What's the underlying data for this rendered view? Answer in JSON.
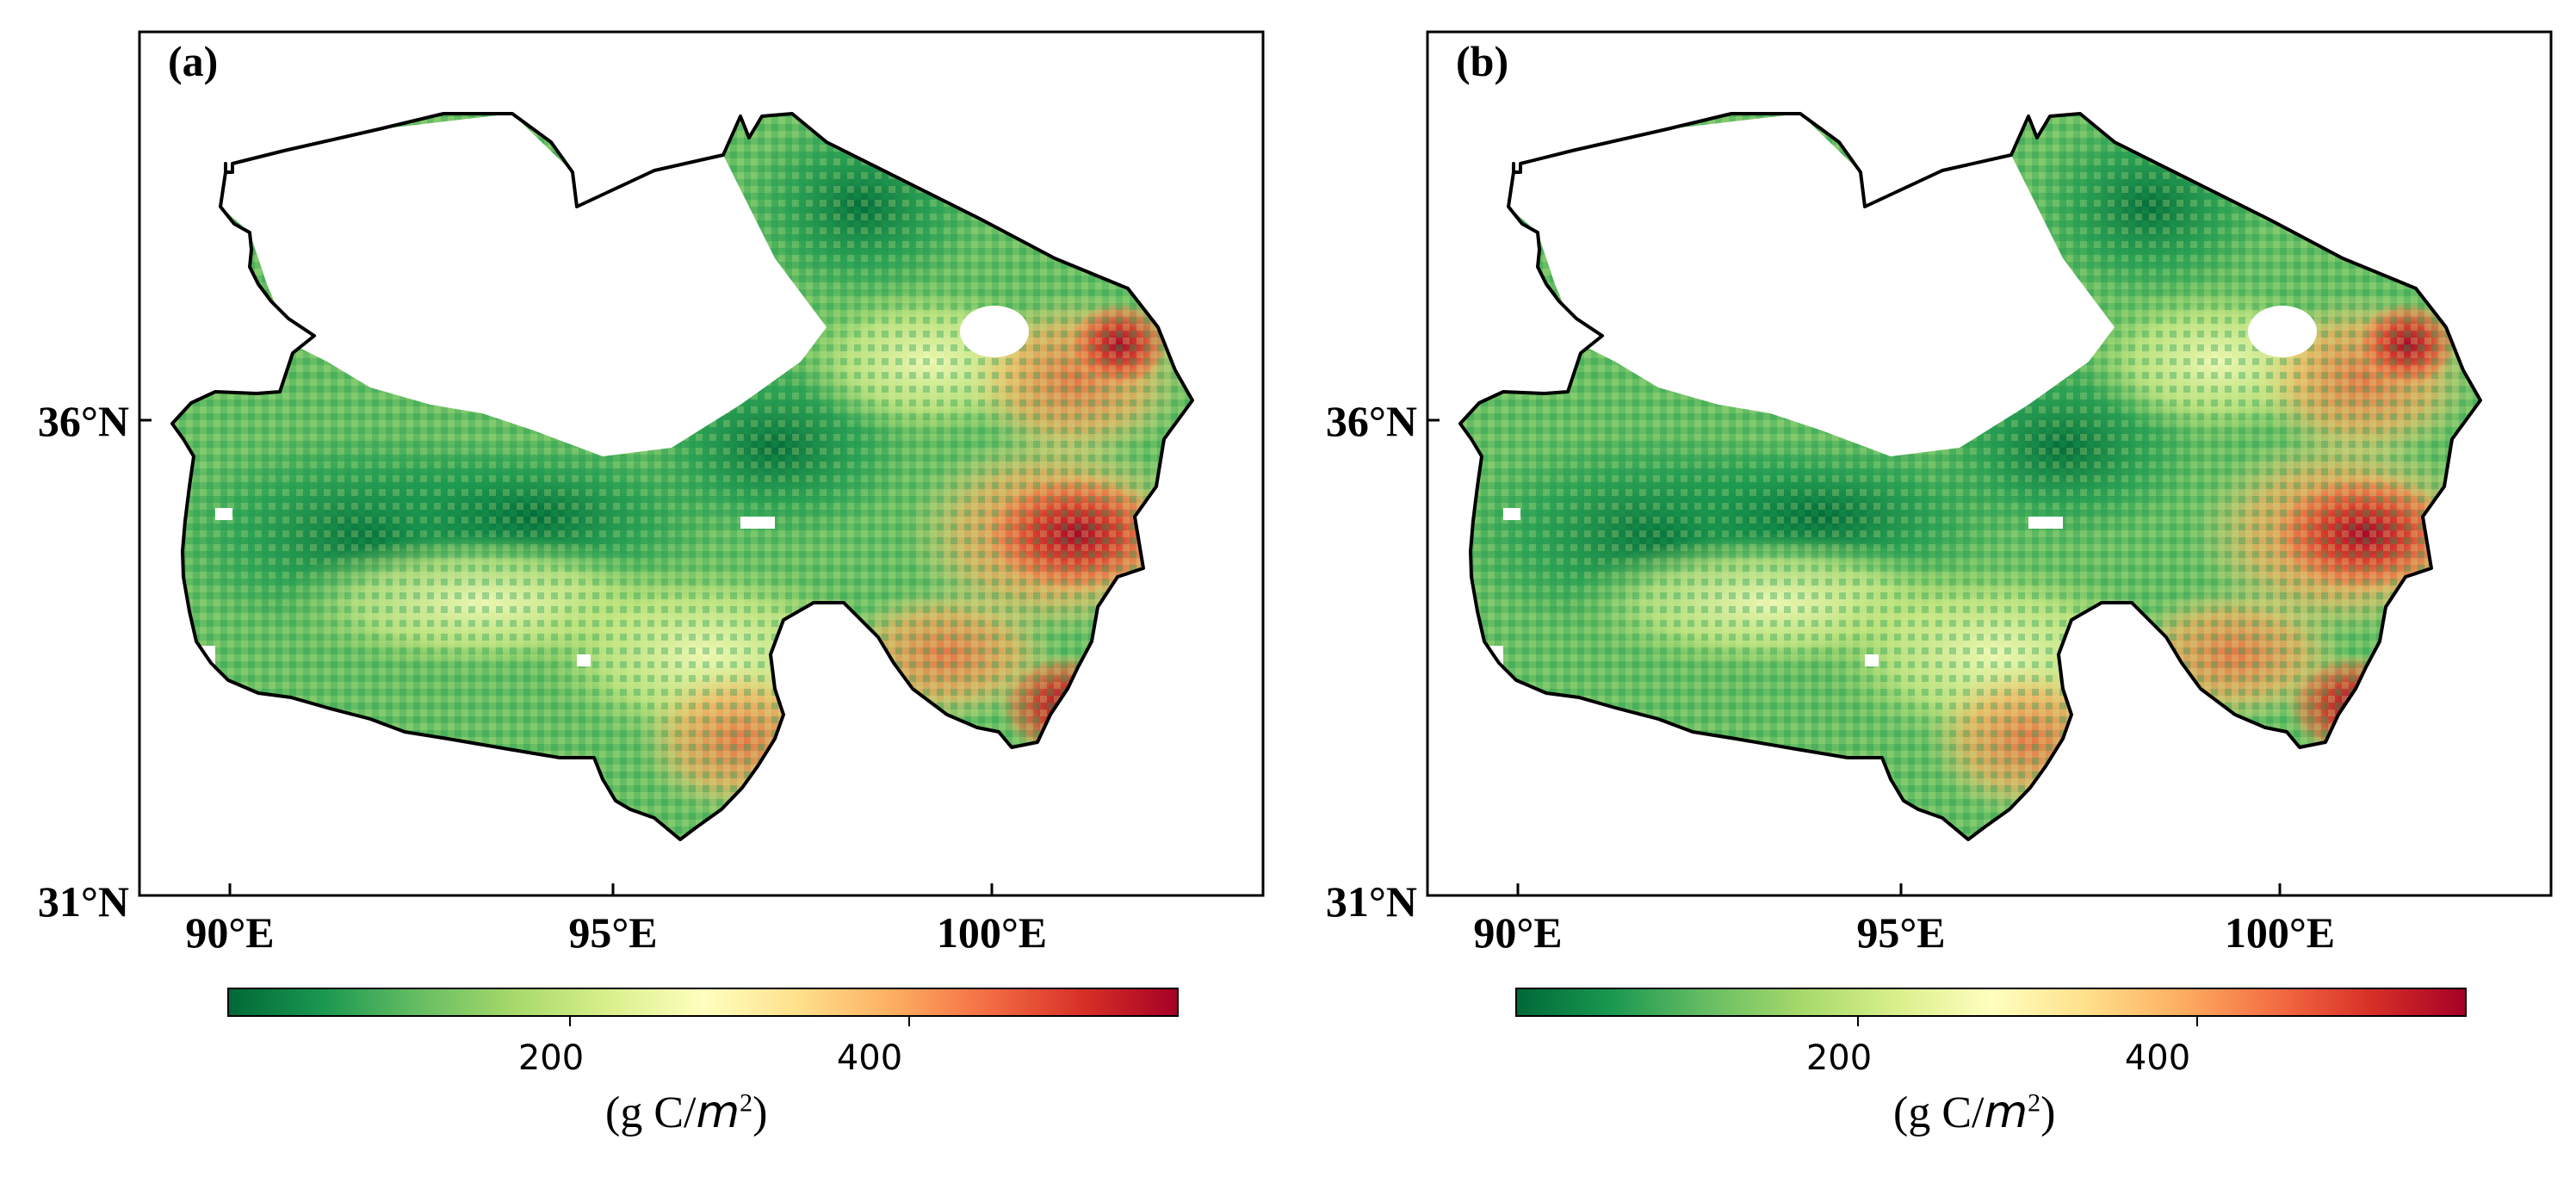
{
  "panels": [
    {
      "label": "(a)",
      "lat_ticks": [
        "36°N",
        "31°N"
      ],
      "lon_ticks": [
        "90°E",
        "95°E",
        "100°E"
      ],
      "colorbar": {
        "ticks": [
          "200",
          "400"
        ],
        "unit_prefix": "(g C/",
        "unit_var": "m",
        "unit_exp": "2",
        "unit_suffix": ")"
      }
    },
    {
      "label": "(b)",
      "lat_ticks": [
        "36°N",
        "31°N"
      ],
      "lon_ticks": [
        "90°E",
        "95°E",
        "100°E"
      ],
      "colorbar": {
        "ticks": [
          "200",
          "400"
        ],
        "unit_prefix": "(g C/",
        "unit_var": "m",
        "unit_exp": "2",
        "unit_suffix": ")"
      }
    }
  ],
  "colormap": [
    "#006837",
    "#1a9850",
    "#66bd63",
    "#a6d96a",
    "#d9ef8b",
    "#ffffbf",
    "#fee08b",
    "#fdae61",
    "#f46d43",
    "#d73027",
    "#a50026"
  ],
  "colorbar_range": [
    0,
    560
  ],
  "colorbar_tick_values": [
    200,
    400
  ]
}
